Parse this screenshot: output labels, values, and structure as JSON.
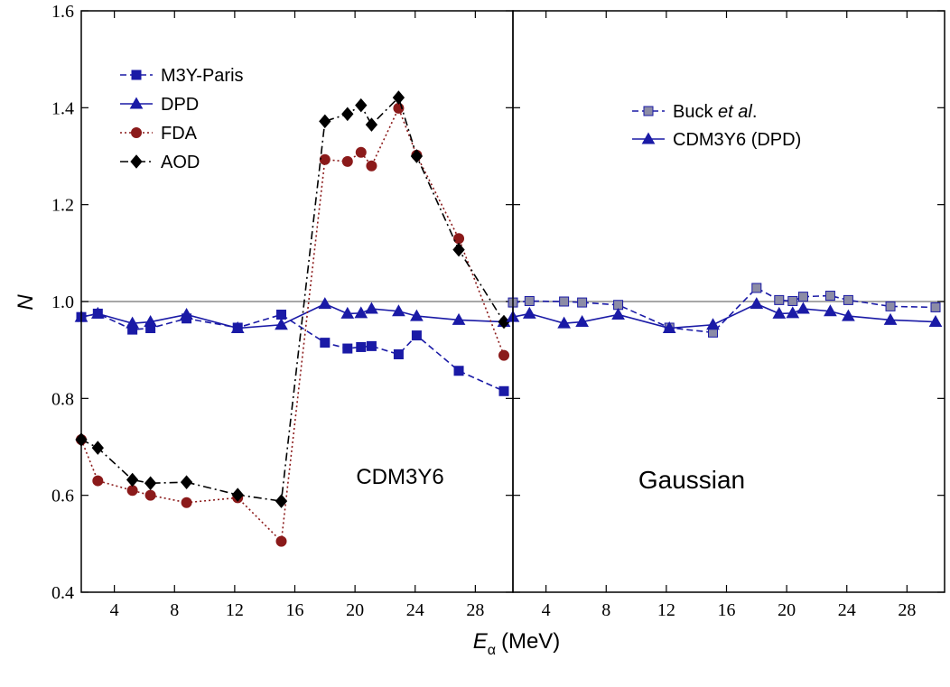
{
  "chart_data": [
    {
      "type": "line",
      "panel_label": "CDM3Y6",
      "xlabel": "E",
      "xlabel_sub": "α",
      "xlabel_unit": "(MeV)",
      "ylabel": "N",
      "xlim": [
        1.8,
        30.5
      ],
      "ylim": [
        0.4,
        1.6
      ],
      "xticks": [
        4,
        8,
        12,
        16,
        20,
        24,
        28
      ],
      "yticks": [
        0.4,
        0.6,
        0.8,
        1.0,
        1.2,
        1.4,
        1.6
      ],
      "ytick_labels": [
        "0.4",
        "0.6",
        "0.8",
        "1.0",
        "1.2",
        "1.4",
        "1.6"
      ],
      "reference_line": 1.0,
      "legend_position": "top-left",
      "series": [
        {
          "name": "M3Y-Paris",
          "color": "#1a1aa6",
          "line": "dashed",
          "marker": "square",
          "x": [
            1.8,
            2.9,
            5.2,
            6.4,
            8.8,
            12.2,
            15.1,
            18.0,
            19.5,
            20.4,
            21.1,
            22.9,
            24.1,
            26.9,
            29.9
          ],
          "y": [
            0.968,
            0.975,
            0.942,
            0.945,
            0.965,
            0.946,
            0.973,
            0.915,
            0.903,
            0.906,
            0.908,
            0.891,
            0.93,
            0.857,
            0.815
          ]
        },
        {
          "name": "DPD",
          "color": "#1a1aa6",
          "line": "solid",
          "marker": "triangle",
          "x": [
            1.8,
            2.9,
            5.2,
            6.4,
            8.8,
            12.2,
            15.1,
            18.0,
            19.5,
            20.4,
            21.1,
            22.9,
            24.1,
            26.9,
            29.9
          ],
          "y": [
            0.968,
            0.975,
            0.955,
            0.958,
            0.973,
            0.945,
            0.952,
            0.995,
            0.975,
            0.976,
            0.985,
            0.98,
            0.97,
            0.962,
            0.958
          ]
        },
        {
          "name": "FDA",
          "color": "#8b1a1a",
          "line": "dotted",
          "marker": "circle",
          "x": [
            1.8,
            2.9,
            5.2,
            6.4,
            8.8,
            12.2,
            15.1,
            18.0,
            19.5,
            20.4,
            21.1,
            22.9,
            24.1,
            26.9,
            29.9
          ],
          "y": [
            0.715,
            0.63,
            0.61,
            0.6,
            0.585,
            0.595,
            0.505,
            1.293,
            1.289,
            1.308,
            1.28,
            1.399,
            1.302,
            1.13,
            0.889
          ]
        },
        {
          "name": "AOD",
          "color": "#000000",
          "line": "dashdot",
          "marker": "diamond",
          "x": [
            1.8,
            2.9,
            5.2,
            6.4,
            8.8,
            12.2,
            15.1,
            18.0,
            19.5,
            20.4,
            21.1,
            22.9,
            24.1,
            26.9,
            29.9
          ],
          "y": [
            0.715,
            0.698,
            0.632,
            0.625,
            0.627,
            0.601,
            0.588,
            1.372,
            1.387,
            1.405,
            1.365,
            1.421,
            1.3,
            1.107,
            0.958
          ]
        }
      ]
    },
    {
      "type": "line",
      "panel_label": "Gaussian",
      "xlim": [
        1.8,
        30.5
      ],
      "ylim": [
        0.4,
        1.6
      ],
      "xticks": [
        4,
        8,
        12,
        16,
        20,
        24,
        28
      ],
      "reference_line": 1.0,
      "legend_position": "top-right",
      "series": [
        {
          "name": "Buck ",
          "name_italic": "et al",
          "name_suffix": ".",
          "color": "#1a1aa6",
          "marker_fill": "#8c8ca6",
          "line": "dashed",
          "marker": "square",
          "x": [
            1.8,
            2.9,
            5.2,
            6.4,
            8.8,
            12.2,
            15.1,
            18.0,
            19.5,
            20.4,
            21.1,
            22.9,
            24.1,
            26.9,
            29.9
          ],
          "y": [
            0.998,
            1.001,
            1.0,
            0.998,
            0.993,
            0.946,
            0.936,
            1.028,
            1.003,
            1.001,
            1.01,
            1.012,
            1.003,
            0.99,
            0.988
          ]
        },
        {
          "name": "CDM3Y6 (DPD)",
          "color": "#1a1aa6",
          "line": "solid",
          "marker": "triangle",
          "x": [
            1.8,
            2.9,
            5.2,
            6.4,
            8.8,
            12.2,
            15.1,
            18.0,
            19.5,
            20.4,
            21.1,
            22.9,
            24.1,
            26.9,
            29.9
          ],
          "y": [
            0.968,
            0.975,
            0.955,
            0.958,
            0.973,
            0.945,
            0.952,
            0.995,
            0.975,
            0.976,
            0.985,
            0.98,
            0.97,
            0.962,
            0.958
          ]
        }
      ]
    }
  ]
}
